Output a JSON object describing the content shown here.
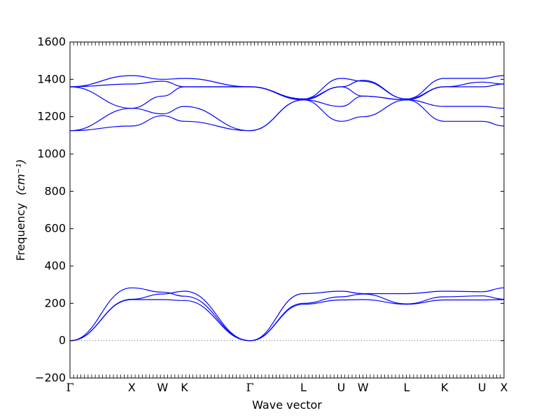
{
  "chart_data": {
    "type": "line",
    "title": "",
    "xlabel": "Wave vector",
    "ylabel": "Frequency",
    "ylabel_unit": "(cm⁻¹)",
    "ylim": [
      -200,
      1600
    ],
    "yticks": [
      -200,
      0,
      200,
      400,
      600,
      800,
      1000,
      1200,
      1400,
      1600
    ],
    "grid": false,
    "legend": "none",
    "line_color": "#0000ff",
    "zero_line_color": "#666666",
    "high_symmetry_points": [
      {
        "label": "Γ",
        "x": 0.0
      },
      {
        "label": "X",
        "x": 1.0
      },
      {
        "label": "W",
        "x": 1.5
      },
      {
        "label": "K",
        "x": 1.854
      },
      {
        "label": "Γ",
        "x": 2.915
      },
      {
        "label": "L",
        "x": 3.781
      },
      {
        "label": "U",
        "x": 4.393
      },
      {
        "label": "W",
        "x": 4.747
      },
      {
        "label": "L",
        "x": 5.454
      },
      {
        "label": "K",
        "x": 6.067
      },
      {
        "label": "U",
        "x": 6.676
      },
      {
        "label": "X",
        "x": 7.03
      }
    ],
    "series": [
      {
        "x": [
          0,
          1,
          1.5,
          1.854,
          2.915,
          3.781,
          4.393,
          4.747,
          5.454,
          6.067,
          6.676,
          7.03
        ],
        "y": [
          0,
          220,
          220,
          215,
          0,
          195,
          218,
          220,
          195,
          218,
          218,
          220
        ]
      },
      {
        "x": [
          0,
          1,
          1.5,
          1.854,
          2.915,
          3.781,
          4.393,
          4.747,
          5.454,
          6.067,
          6.676,
          7.03
        ],
        "y": [
          0,
          222,
          250,
          265,
          0,
          200,
          235,
          250,
          197,
          235,
          240,
          222
        ]
      },
      {
        "x": [
          0,
          1,
          1.5,
          1.854,
          2.915,
          3.781,
          4.393,
          4.747,
          5.454,
          6.067,
          6.676,
          7.03
        ],
        "y": [
          0,
          283,
          260,
          238,
          0,
          252,
          265,
          252,
          252,
          265,
          262,
          283
        ]
      },
      {
        "x": [
          0,
          1,
          1.5,
          1.854,
          2.915,
          3.781,
          4.393,
          4.747,
          5.454,
          6.067,
          6.676,
          7.03
        ],
        "y": [
          1125,
          1150,
          1205,
          1175,
          1125,
          1290,
          1175,
          1200,
          1290,
          1175,
          1175,
          1150
        ]
      },
      {
        "x": [
          0,
          1,
          1.5,
          1.854,
          2.915,
          3.781,
          4.393,
          4.747,
          5.454,
          6.067,
          6.676,
          7.03
        ],
        "y": [
          1125,
          1245,
          1215,
          1255,
          1125,
          1290,
          1255,
          1310,
          1290,
          1255,
          1255,
          1245
        ]
      },
      {
        "x": [
          0,
          1,
          1.5,
          1.854,
          2.915,
          3.781,
          4.393,
          4.747,
          5.454,
          6.067,
          6.676,
          7.03
        ],
        "y": [
          1360,
          1245,
          1310,
          1360,
          1360,
          1290,
          1360,
          1310,
          1290,
          1360,
          1360,
          1375
        ]
      },
      {
        "x": [
          0,
          1,
          1.5,
          1.854,
          2.915,
          3.781,
          4.393,
          4.747,
          5.454,
          6.067,
          6.676,
          7.03
        ],
        "y": [
          1360,
          1375,
          1390,
          1360,
          1360,
          1295,
          1360,
          1395,
          1295,
          1360,
          1385,
          1375
        ]
      },
      {
        "x": [
          0,
          1,
          1.5,
          1.854,
          2.915,
          3.781,
          4.393,
          4.747,
          5.454,
          6.067,
          6.676,
          7.03
        ],
        "y": [
          1360,
          1420,
          1400,
          1405,
          1360,
          1295,
          1405,
          1390,
          1295,
          1405,
          1405,
          1420
        ]
      }
    ]
  }
}
